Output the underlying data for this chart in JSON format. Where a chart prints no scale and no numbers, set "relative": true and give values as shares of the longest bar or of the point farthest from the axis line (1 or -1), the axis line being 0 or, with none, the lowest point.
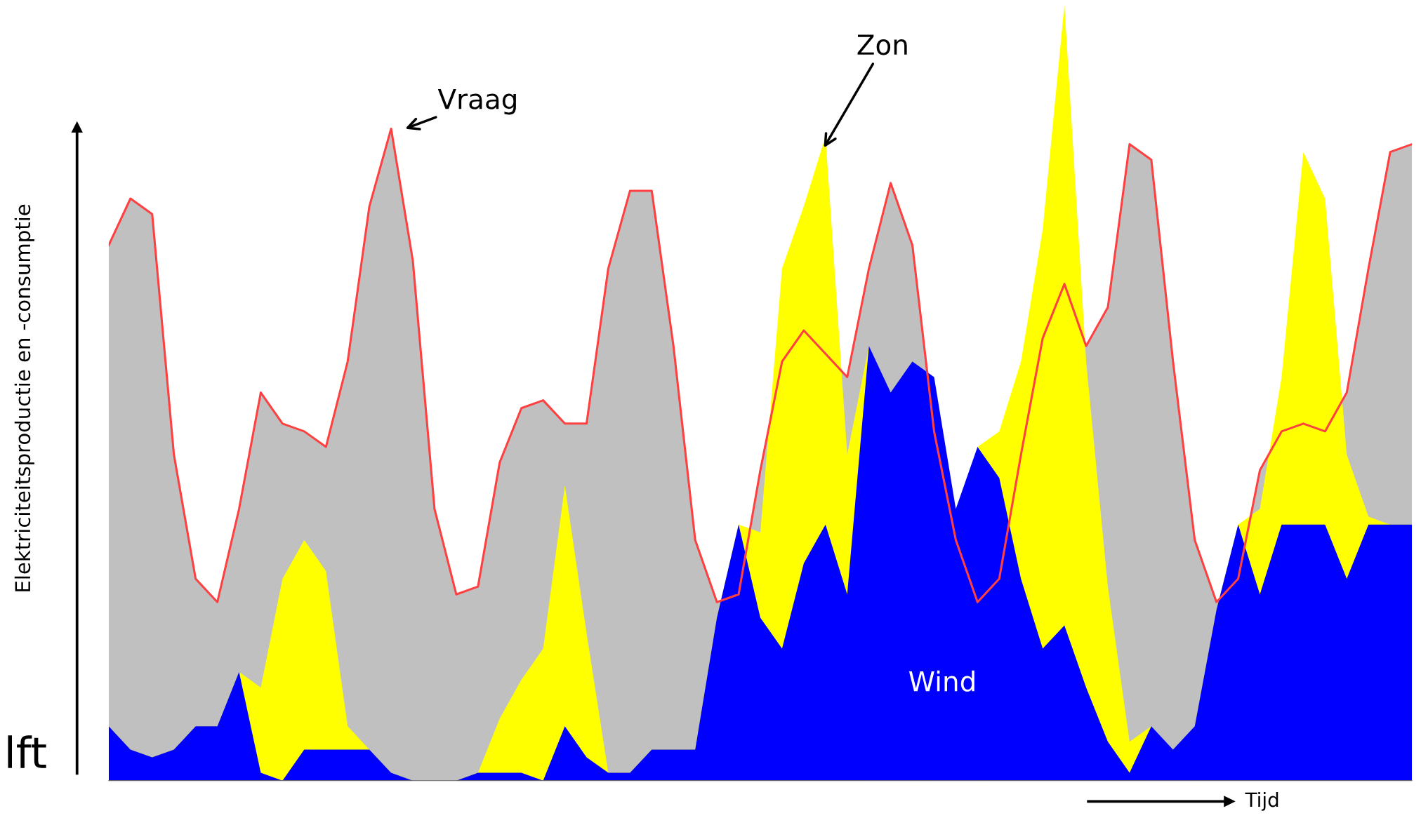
{
  "chart_data": {
    "type": "area",
    "relative": true,
    "ylabel": "Elektriciteitsproductie en -consumptie",
    "xlabel": "Tijd",
    "categories": [
      null,
      null,
      null,
      null,
      null,
      null,
      null,
      null,
      null,
      null,
      null,
      null,
      null,
      null,
      null,
      null,
      null,
      null,
      null,
      null,
      null,
      null,
      null,
      null,
      null,
      null,
      null,
      null,
      null,
      null,
      null,
      null,
      null,
      null,
      null,
      null,
      null,
      null,
      null,
      null,
      null,
      null,
      null,
      null,
      null,
      null,
      null,
      null,
      null,
      null,
      null,
      null,
      null,
      null,
      null,
      null,
      null,
      null,
      null,
      null,
      null
    ],
    "series": [
      {
        "color": "#ff4040",
        "values": [
          0.69,
          0.75,
          0.73,
          0.42,
          0.26,
          0.23,
          0.35,
          0.5,
          0.46,
          0.45,
          0.43,
          0.54,
          0.74,
          0.84,
          0.67,
          0.35,
          0.24,
          0.25,
          0.41,
          0.48,
          0.49,
          0.46,
          0.46,
          0.66,
          0.76,
          0.76,
          0.56,
          0.31,
          0.23,
          0.24,
          0.4,
          0.54,
          0.58,
          0.55,
          0.52,
          0.66,
          0.77,
          0.69,
          0.45,
          0.31,
          0.23,
          0.26,
          0.42,
          0.57,
          0.64,
          0.56,
          0.61,
          0.82,
          0.8,
          0.54,
          0.31,
          0.23,
          0.26,
          0.4,
          0.45,
          0.46,
          0.45,
          0.5,
          0.66,
          0.81,
          0.82
        ]
      },
      {
        "color": "#ffff00",
        "values": [
          0.07,
          0.04,
          0.03,
          0.04,
          0.07,
          0.07,
          0.14,
          0.12,
          0.26,
          0.31,
          0.27,
          0.07,
          0.04,
          0.01,
          0,
          0,
          0,
          0.01,
          0.08,
          0.13,
          0.17,
          0.38,
          0.19,
          0.01,
          0.01,
          0.04,
          0.04,
          0.04,
          0.21,
          0.33,
          0.32,
          0.66,
          0.74,
          0.83,
          0.42,
          0.56,
          null,
          0.54,
          0.52,
          null,
          0.43,
          0.45,
          0.54,
          0.71,
          1.0,
          0.54,
          0.25,
          0.05,
          0.07,
          null,
          0.07,
          0.22,
          0.33,
          0.35,
          0.52,
          0.81,
          0.75,
          0.42,
          0.34,
          0.33,
          0.33
        ]
      },
      {
        "color": "#0000ff",
        "values": [
          0.07,
          0.04,
          0.03,
          0.04,
          0.07,
          0.07,
          0.14,
          0.01,
          0,
          0.04,
          0.04,
          0.04,
          0.04,
          0.01,
          0,
          0,
          0,
          0.01,
          0.01,
          0.01,
          0,
          0.07,
          0.03,
          0.01,
          0.01,
          0.04,
          0.04,
          0.04,
          0.21,
          0.33,
          0.21,
          0.17,
          0.28,
          0.33,
          0.24,
          0.56,
          0.5,
          0.54,
          0.52,
          0.35,
          0.43,
          0.39,
          0.26,
          0.17,
          0.2,
          0.12,
          0.05,
          0.01,
          0.07,
          0.04,
          0.07,
          0.22,
          0.33,
          0.24,
          0.33,
          0.33,
          0.33,
          0.26,
          0.33,
          0.33,
          0.33
        ]
      }
    ],
    "annotations": [
      "Vraag",
      "Zon",
      "Wind",
      "lft"
    ]
  }
}
